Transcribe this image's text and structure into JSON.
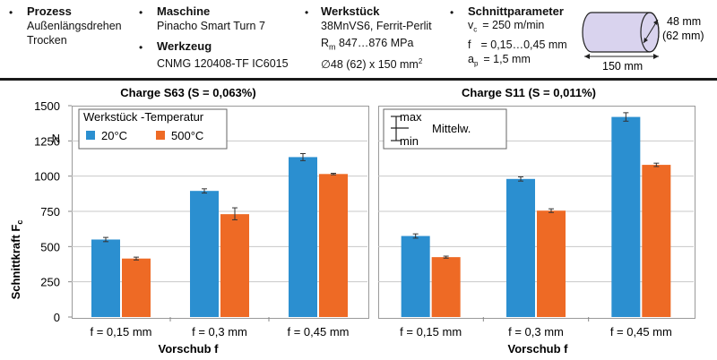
{
  "header": {
    "prozess": {
      "title": "Prozess",
      "lines": [
        "Außenlängsdrehen",
        "Trocken"
      ]
    },
    "maschine": {
      "title": "Maschine",
      "line": "Pinacho Smart Turn 7"
    },
    "werkzeug": {
      "title": "Werkzeug",
      "line": "CNMG 120408-TF IC6015"
    },
    "werkstueck": {
      "title": "Werkstück",
      "material": "38MnVS6, Ferrit-Perlit",
      "rm_symbol": "R",
      "rm_sub": "m",
      "rm_value": " 847…876 MPa",
      "dim": "∅48 (62) x 150 mm",
      "dim_sup": "2"
    },
    "schnittparameter": {
      "title": "Schnittparameter",
      "vc_symbol": "v",
      "vc_sub": "c",
      "vc_value": "= 250 m/min",
      "f_symbol": "f",
      "f_value": "= 0,15…0,45 mm",
      "ap_symbol": "a",
      "ap_sub": "p",
      "ap_value": "= 1,5 mm"
    },
    "cylinder": {
      "length": "150 mm",
      "diam1": "48 mm",
      "diam2": "(62 mm)",
      "color": "#d9d3ee"
    }
  },
  "chart": {
    "ylabel_main": "Schnittkraft F",
    "ylabel_sub": "c",
    "unit": "N",
    "legend_title": "Werkstück -Temperatur",
    "legend_items": [
      "20°C",
      "500°C"
    ],
    "errorbar_legend": {
      "max": "max",
      "min": "min",
      "label": "Mittelw."
    },
    "colors": {
      "s20": "#2b8fd0",
      "s500": "#ee6a25"
    }
  },
  "chart_data": [
    {
      "type": "bar",
      "title": "Charge S63 (S = 0,063%)",
      "xlabel": "Vorschub f",
      "ylabel": "Schnittkraft Fc",
      "categories": [
        "f = 0,15 mm",
        "f = 0,3 mm",
        "f = 0,45 mm"
      ],
      "ylim": [
        0,
        1500
      ],
      "yticks": [
        0,
        250,
        500,
        750,
        1000,
        1250,
        1500
      ],
      "series": [
        {
          "name": "20°C",
          "values": [
            550,
            895,
            1135
          ],
          "err_min": [
            535,
            880,
            1110
          ],
          "err_max": [
            565,
            910,
            1160
          ]
        },
        {
          "name": "500°C",
          "values": [
            415,
            730,
            1015
          ],
          "err_min": [
            405,
            690,
            1010
          ],
          "err_max": [
            425,
            775,
            1020
          ]
        }
      ]
    },
    {
      "type": "bar",
      "title": "Charge S11 (S = 0,011%)",
      "xlabel": "Vorschub f",
      "ylabel": "Schnittkraft Fc",
      "categories": [
        "f = 0,15 mm",
        "f = 0,3 mm",
        "f = 0,45 mm"
      ],
      "ylim": [
        0,
        1500
      ],
      "yticks": [
        0,
        250,
        500,
        750,
        1000,
        1250,
        1500
      ],
      "series": [
        {
          "name": "20°C",
          "values": [
            575,
            980,
            1420
          ],
          "err_min": [
            560,
            965,
            1390
          ],
          "err_max": [
            590,
            995,
            1450
          ]
        },
        {
          "name": "500°C",
          "values": [
            425,
            755,
            1080
          ],
          "err_min": [
            418,
            742,
            1068
          ],
          "err_max": [
            432,
            768,
            1092
          ]
        }
      ]
    }
  ]
}
